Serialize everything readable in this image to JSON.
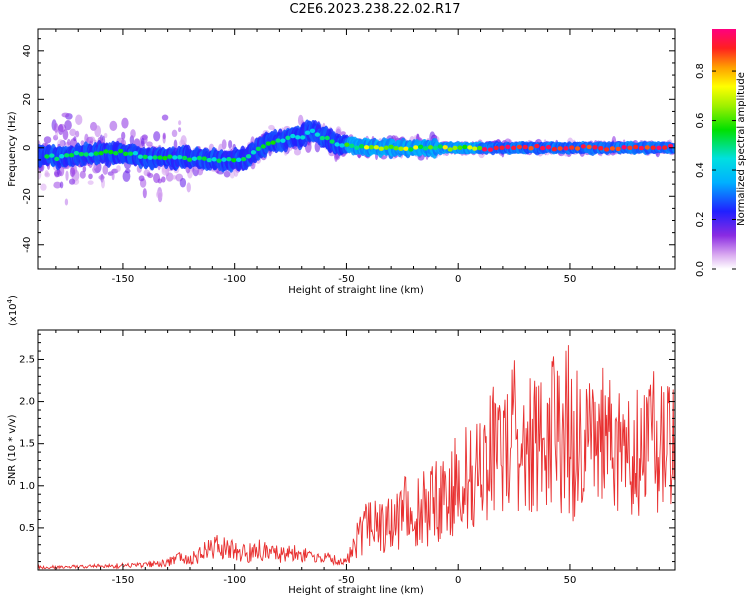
{
  "title": "C2E6.2023.238.22.02.R17",
  "chart_data": [
    {
      "type": "heatmap",
      "xlabel": "Height of straight line (km)",
      "ylabel": "Frequency (Hz)",
      "xlim": [
        -188,
        97
      ],
      "ylim": [
        -50,
        49
      ],
      "xticks": [
        -150,
        -100,
        -50,
        0,
        50
      ],
      "yticks": [
        -40,
        -20,
        0,
        20,
        40
      ],
      "colorbar": {
        "label": "Normalized spectral amplitude",
        "range": [
          0.0,
          0.97
        ],
        "ticks": [
          "0.0",
          "0.2",
          "0.4",
          "0.6",
          "0.8"
        ],
        "colormap": "rainbow (white-violet-blue-cyan-green-yellow-orange-red-magenta)"
      },
      "ridge": {
        "description": "frequency of maximum spectral amplitude vs height",
        "x": [
          -188,
          -180,
          -170,
          -160,
          -150,
          -140,
          -130,
          -120,
          -110,
          -100,
          -95,
          -90,
          -85,
          -80,
          -75,
          -70,
          -65,
          -60,
          -55,
          -50,
          -40,
          -30,
          -20,
          -10,
          0,
          20,
          40,
          60,
          80,
          97
        ],
        "y": [
          -3,
          -4,
          -3,
          -2,
          -2,
          -4,
          -4,
          -4,
          -5,
          -5,
          -4,
          -1,
          2,
          3,
          4,
          5,
          7,
          4,
          2,
          1,
          0,
          0,
          0,
          0,
          0,
          0,
          0,
          0,
          0,
          0
        ]
      }
    },
    {
      "type": "line",
      "xlabel": "Height of straight line (km)",
      "ylabel": "SNR (10 * v/v)",
      "multiplier": "(x10",
      "multiplier_exp": "4",
      "multiplier_close": ")",
      "xlim": [
        -188,
        97
      ],
      "ylim": [
        0,
        2.85
      ],
      "xticks": [
        -150,
        -100,
        -50,
        0,
        50
      ],
      "yticks": [
        "0.5",
        "1.0",
        "1.5",
        "2.0",
        "2.5"
      ],
      "color": "#e83030",
      "series": [
        {
          "x": [
            -188,
            -170,
            -150,
            -140,
            -130,
            -125,
            -120,
            -115,
            -110,
            -105,
            -100,
            -95,
            -90,
            -85,
            -80,
            -75,
            -70,
            -65,
            -60,
            -55,
            -50,
            -48,
            -45,
            -42,
            -40,
            -35,
            -30,
            -25,
            -20,
            -15,
            -10,
            -5,
            0,
            5,
            10,
            15,
            20,
            25,
            30,
            35,
            40,
            45,
            50,
            55,
            60,
            65,
            70,
            75,
            80,
            85,
            90,
            95
          ],
          "y": [
            0.03,
            0.04,
            0.05,
            0.06,
            0.09,
            0.15,
            0.16,
            0.2,
            0.28,
            0.25,
            0.26,
            0.2,
            0.22,
            0.27,
            0.18,
            0.2,
            0.19,
            0.14,
            0.16,
            0.12,
            0.1,
            0.2,
            0.4,
            0.48,
            0.5,
            0.55,
            0.6,
            0.68,
            0.72,
            0.75,
            0.8,
            0.88,
            1.1,
            1.2,
            1.25,
            1.4,
            1.45,
            1.6,
            1.5,
            1.55,
            1.6,
            1.65,
            1.55,
            1.5,
            1.6,
            1.55,
            1.45,
            1.5,
            1.4,
            1.6,
            1.5,
            1.5
          ],
          "spread": [
            0.02,
            0.02,
            0.03,
            0.03,
            0.05,
            0.08,
            0.1,
            0.12,
            0.16,
            0.15,
            0.15,
            0.12,
            0.14,
            0.14,
            0.1,
            0.1,
            0.1,
            0.07,
            0.07,
            0.06,
            0.05,
            0.12,
            0.25,
            0.3,
            0.32,
            0.35,
            0.4,
            0.42,
            0.45,
            0.5,
            0.5,
            0.55,
            0.65,
            0.7,
            0.72,
            0.8,
            0.85,
            0.9,
            0.9,
            0.9,
            0.9,
            0.95,
            1.2,
            0.95,
            0.9,
            0.9,
            0.85,
            0.85,
            0.8,
            0.9,
            0.85,
            0.8
          ]
        }
      ]
    }
  ]
}
